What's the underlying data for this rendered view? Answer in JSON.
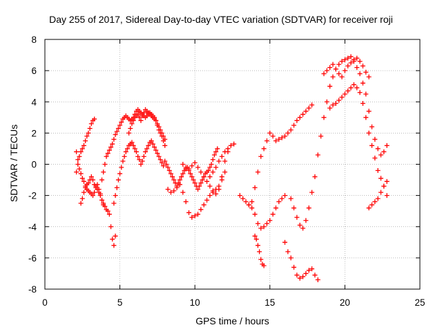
{
  "chart_data": {
    "type": "scatter",
    "title": "Day 255 of 2017, Sidereal Day-to-day VTEC variation (SDTVAR) for receiver roji",
    "xlabel": "GPS time / hours",
    "ylabel": "SDTVAR / TECUs",
    "xlim": [
      0,
      25
    ],
    "ylim": [
      -8,
      8
    ],
    "xticks": [
      "0",
      "5",
      "10",
      "15",
      "20",
      "25"
    ],
    "yticks": [
      "-8",
      "-6",
      "-4",
      "-2",
      "0",
      "2",
      "4",
      "6",
      "8"
    ],
    "grid": true,
    "marker": "+",
    "color": "#ff0000",
    "series": [
      {
        "x": [
          2.1,
          2.2,
          2.3,
          2.4,
          2.5,
          2.6,
          2.7,
          2.8,
          2.9,
          3.0,
          3.1,
          3.2,
          3.3,
          2.1,
          2.2,
          2.3,
          2.4,
          2.5,
          2.6,
          2.7,
          2.8,
          2.9,
          3.0,
          3.1,
          3.2,
          3.3,
          3.4,
          3.5,
          3.6,
          3.7,
          3.8,
          3.9,
          4.0,
          4.1,
          4.2,
          4.3,
          4.4,
          4.5,
          4.6,
          4.7,
          2.4,
          2.5,
          2.6,
          2.7,
          2.8,
          2.9,
          3.0,
          3.1,
          3.2,
          3.3,
          3.4,
          3.5,
          3.6,
          3.7,
          3.8,
          3.9,
          3.8,
          3.9,
          4.0,
          4.1,
          4.2,
          4.3,
          4.4,
          4.5,
          4.6,
          4.7,
          4.8,
          4.9,
          5.0,
          5.1,
          5.2,
          5.3,
          5.4,
          5.5,
          5.6,
          5.7,
          5.8,
          5.9,
          6.0,
          6.1,
          6.2,
          6.3,
          6.4,
          6.5,
          6.6,
          6.7,
          6.8,
          6.9,
          7.0,
          7.1,
          7.2,
          7.3,
          7.4,
          7.5,
          7.6,
          7.7,
          7.8,
          7.9,
          8.0,
          4.6,
          4.7,
          4.8,
          4.9,
          5.0,
          5.1,
          5.2,
          5.3,
          5.4,
          5.5,
          5.6,
          5.7,
          5.8,
          5.9,
          6.0,
          6.1,
          6.2,
          6.3,
          6.4,
          6.5,
          6.6,
          6.7,
          6.8,
          6.9,
          7.0,
          7.1,
          7.2,
          7.3,
          7.4,
          7.5,
          7.6,
          7.7,
          7.8,
          7.9,
          8.0,
          8.1,
          8.2,
          8.3,
          8.4,
          8.5,
          8.6,
          8.7,
          8.8,
          8.9,
          9.0,
          9.1,
          9.2,
          9.3,
          9.4,
          9.5,
          9.6,
          9.7,
          9.8,
          9.9,
          10.0,
          10.1,
          10.2,
          10.3,
          10.4,
          10.5,
          10.6,
          10.7,
          10.8,
          10.9,
          11.0,
          11.1,
          11.2,
          11.3,
          11.4,
          11.5,
          5.6,
          5.7,
          5.8,
          5.9,
          6.0,
          6.1,
          6.2,
          6.3,
          6.4,
          6.5,
          6.6,
          6.7,
          6.8,
          6.9,
          7.0,
          7.1,
          7.2,
          7.3,
          7.4,
          7.5,
          7.6,
          7.7,
          7.8,
          7.9,
          8.0,
          8.2,
          8.4,
          8.6,
          8.8,
          9.0,
          9.2,
          9.4,
          9.6,
          9.8,
          10.0,
          10.2,
          10.4,
          10.6,
          10.8,
          11.0,
          11.2,
          11.4,
          11.6,
          11.8,
          12.0,
          9.2,
          9.4,
          9.6,
          9.8,
          10.0,
          10.2,
          10.4,
          10.6,
          10.8,
          11.0,
          11.2,
          11.4,
          11.6,
          11.8,
          12.0,
          12.2,
          11.0,
          11.2,
          11.4,
          11.6,
          11.8,
          12.0,
          12.2,
          12.4,
          12.6,
          13.0,
          13.2,
          13.4,
          13.6,
          13.8,
          14.0,
          14.2,
          14.4,
          14.6,
          14.8,
          15.0,
          15.2,
          15.4,
          15.6,
          15.8,
          16.0,
          13.6,
          13.8,
          14.0,
          14.2,
          14.4,
          14.6,
          14.8,
          15.0,
          15.2,
          15.4,
          15.6,
          15.8,
          16.0,
          16.2,
          16.4,
          16.6,
          16.8,
          17.0,
          17.2,
          17.4,
          17.6,
          17.8,
          14.0,
          14.1,
          14.2,
          14.3,
          14.4,
          14.5,
          14.6,
          16.0,
          16.2,
          16.4,
          16.6,
          16.8,
          17.0,
          17.2,
          17.4,
          17.6,
          17.8,
          18.0,
          18.2,
          16.4,
          16.6,
          16.8,
          17.0,
          17.2,
          17.4,
          17.6,
          17.8,
          18.0,
          18.2,
          18.4,
          18.6,
          18.8,
          19.0,
          19.2,
          19.4,
          19.6,
          19.8,
          20.0,
          20.2,
          20.4,
          20.6,
          20.8,
          21.0,
          21.2,
          21.4,
          21.6,
          21.8,
          22.0,
          22.2,
          22.4,
          22.6,
          22.8,
          18.6,
          18.8,
          19.0,
          19.2,
          19.4,
          19.6,
          19.8,
          20.0,
          20.2,
          20.4,
          20.6,
          20.8,
          21.0,
          21.2,
          21.4,
          21.6,
          19.0,
          19.2,
          19.4,
          19.6,
          19.8,
          20.0,
          20.2,
          20.4,
          20.6,
          20.8,
          21.0,
          21.2,
          21.4,
          21.6,
          21.8,
          22.0,
          22.2,
          22.4,
          22.6,
          22.8,
          21.6,
          21.8,
          22.0,
          22.2,
          22.4,
          22.6,
          22.8
        ],
        "y": [
          -0.5,
          0.0,
          0.5,
          0.8,
          1.0,
          1.2,
          1.5,
          1.8,
          2.0,
          2.3,
          2.6,
          2.8,
          2.9,
          0.8,
          0.3,
          -0.3,
          -0.6,
          -0.9,
          -1.1,
          -1.4,
          -1.6,
          -1.7,
          -1.8,
          -1.9,
          -2.0,
          -1.8,
          -1.5,
          -1.3,
          -1.6,
          -1.9,
          -2.3,
          -2.5,
          -2.7,
          -2.9,
          -3.0,
          -3.2,
          -4.0,
          -4.8,
          -5.2,
          -4.6,
          -2.5,
          -2.2,
          -1.8,
          -1.5,
          -1.3,
          -1.2,
          -1.0,
          -0.8,
          -1.0,
          -1.3,
          -1.4,
          -1.6,
          -1.8,
          -2.0,
          -2.3,
          -2.6,
          -1.0,
          -0.5,
          0.0,
          0.5,
          0.7,
          0.9,
          1.1,
          1.3,
          1.6,
          1.9,
          2.1,
          2.3,
          2.5,
          2.7,
          2.9,
          3.0,
          3.1,
          3.0,
          2.9,
          2.8,
          2.9,
          3.0,
          3.2,
          3.4,
          3.5,
          3.4,
          3.3,
          3.2,
          3.1,
          3.0,
          3.1,
          3.2,
          3.3,
          3.2,
          3.1,
          3.0,
          2.8,
          2.5,
          2.2,
          2.0,
          1.8,
          1.5,
          1.2,
          -2.5,
          -2.0,
          -1.5,
          -1.0,
          -0.6,
          -0.2,
          0.2,
          0.5,
          0.8,
          1.0,
          1.2,
          1.3,
          1.4,
          1.2,
          1.0,
          0.8,
          0.5,
          0.3,
          0.0,
          0.2,
          0.5,
          0.8,
          1.0,
          1.2,
          1.4,
          1.5,
          1.3,
          1.1,
          0.9,
          0.7,
          0.5,
          0.3,
          0.1,
          -0.1,
          0.2,
          0.0,
          -0.2,
          -0.4,
          -0.6,
          -0.8,
          -1.0,
          -1.2,
          -1.4,
          -1.2,
          -1.0,
          -0.8,
          -0.6,
          -0.4,
          -0.3,
          -0.2,
          -0.4,
          -0.6,
          -0.8,
          -1.0,
          -1.2,
          -1.4,
          -1.6,
          -1.4,
          -1.2,
          -1.0,
          -0.8,
          -0.6,
          -0.5,
          -0.4,
          -0.2,
          0.0,
          0.3,
          0.6,
          0.8,
          1.0,
          2.0,
          2.3,
          2.6,
          2.8,
          3.0,
          3.1,
          3.2,
          3.0,
          2.8,
          3.1,
          3.3,
          3.5,
          3.4,
          3.3,
          3.2,
          3.1,
          3.0,
          2.9,
          2.8,
          2.6,
          2.4,
          2.2,
          2.0,
          1.8,
          1.6,
          -1.6,
          -1.8,
          -1.7,
          -1.5,
          -1.3,
          -1.8,
          -2.4,
          -3.1,
          -3.4,
          -3.3,
          -3.2,
          -2.9,
          -2.6,
          -2.3,
          -2.0,
          -1.8,
          -1.6,
          -1.4,
          -1.0,
          -0.5,
          0.0,
          -0.2,
          -0.3,
          -0.1,
          0.1,
          -0.2,
          -0.5,
          -0.8,
          -1.1,
          -1.4,
          -1.7,
          -1.9,
          -1.6,
          -0.8,
          0.2,
          0.8,
          -0.8,
          -0.5,
          -0.2,
          0.2,
          0.5,
          0.8,
          1.0,
          1.2,
          1.3,
          -2.0,
          -2.2,
          -2.4,
          -2.6,
          -2.8,
          -3.2,
          -3.8,
          -4.1,
          -4.0,
          -3.8,
          -3.6,
          -3.2,
          -2.8,
          -2.4,
          -2.2,
          -2.0,
          -2.6,
          -2.4,
          -1.5,
          -0.5,
          0.5,
          1.0,
          1.5,
          2.0,
          1.8,
          1.5,
          1.6,
          1.7,
          1.8,
          2.0,
          2.2,
          2.5,
          2.8,
          3.0,
          3.2,
          3.4,
          3.6,
          3.8,
          -4.6,
          -4.8,
          -5.2,
          -5.6,
          -6.1,
          -6.4,
          -6.5,
          -5.0,
          -5.6,
          -6.0,
          -6.6,
          -7.1,
          -7.3,
          -7.2,
          -7.0,
          -6.8,
          -6.7,
          -7.1,
          -7.4,
          -2.2,
          -2.8,
          -3.4,
          -3.9,
          -4.1,
          -3.6,
          -2.8,
          -1.8,
          -0.8,
          0.6,
          1.8,
          3.0,
          4.0,
          5.0,
          5.6,
          6.1,
          6.4,
          6.6,
          6.7,
          6.8,
          6.9,
          6.6,
          6.2,
          5.8,
          5.2,
          4.5,
          3.4,
          2.4,
          1.6,
          1.0,
          0.6,
          0.8,
          1.2,
          5.8,
          6.0,
          6.2,
          6.4,
          6.1,
          5.8,
          5.6,
          6.0,
          6.3,
          6.5,
          6.7,
          6.8,
          6.6,
          6.3,
          5.9,
          5.6,
          3.6,
          3.8,
          3.9,
          4.1,
          4.3,
          4.5,
          4.7,
          4.9,
          5.1,
          4.9,
          4.6,
          3.9,
          3.0,
          2.0,
          1.2,
          0.4,
          -0.4,
          -0.9,
          -1.4,
          -2.0,
          -2.8,
          -2.6,
          -2.4,
          -2.2,
          -1.8,
          -1.4,
          -1.1
        ]
      }
    ]
  }
}
